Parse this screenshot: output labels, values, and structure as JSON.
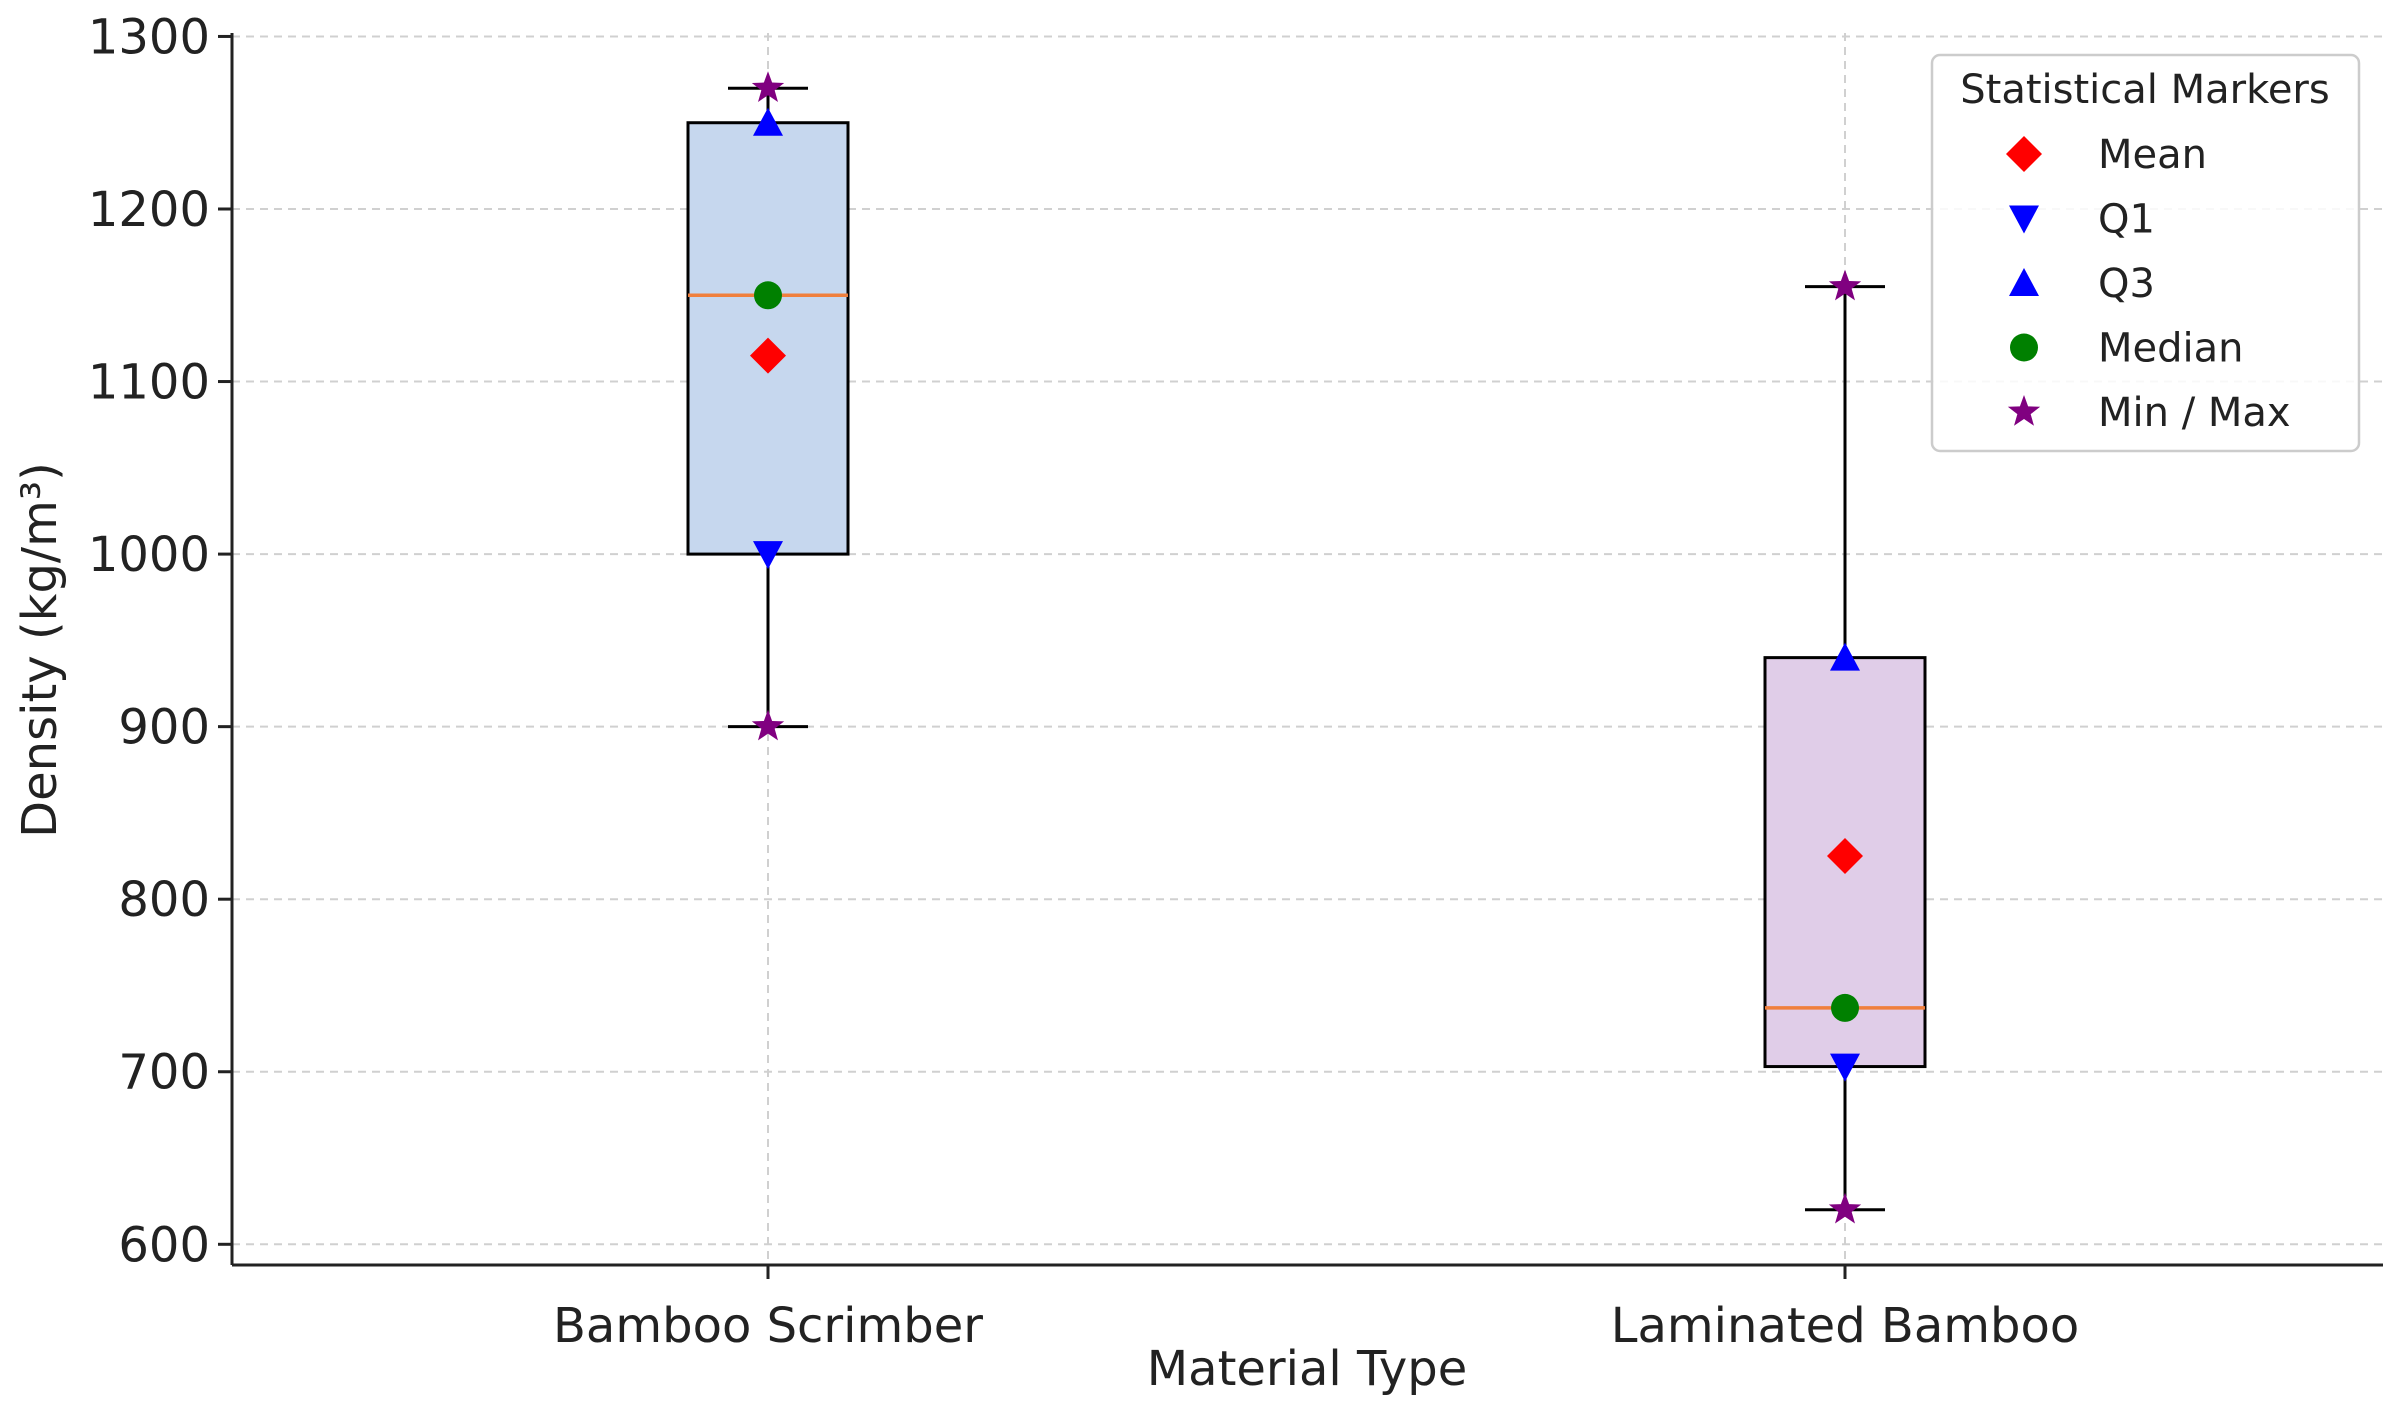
{
  "chart_data": {
    "type": "box",
    "title": "",
    "xlabel": "Material Type",
    "ylabel": "Density (kg/m³)",
    "ylim": [
      588,
      1302
    ],
    "yticks": [
      600,
      700,
      800,
      900,
      1000,
      1100,
      1200,
      1300
    ],
    "grid": true,
    "categories": [
      "Bamboo Scrimber",
      "Laminated Bamboo"
    ],
    "boxes": [
      {
        "name": "Bamboo Scrimber",
        "min": 900,
        "q1": 1000,
        "median": 1150,
        "q3": 1250,
        "max": 1270,
        "mean": 1115,
        "color": "#c6d7ee"
      },
      {
        "name": "Laminated Bamboo",
        "min": 620,
        "q1": 703,
        "median": 737,
        "q3": 940,
        "max": 1155,
        "mean": 825,
        "color": "#e0cde8"
      }
    ],
    "median_line_color": "#f07f3c",
    "legend": {
      "title": "Statistical Markers",
      "position": "top-right",
      "entries": [
        {
          "label": "Mean",
          "marker": "diamond",
          "color": "#ff0000"
        },
        {
          "label": "Q1",
          "marker": "triangle-down",
          "color": "#0000ff"
        },
        {
          "label": "Q3",
          "marker": "triangle-up",
          "color": "#0000ff"
        },
        {
          "label": "Median",
          "marker": "circle",
          "color": "#008000"
        },
        {
          "label": "Min / Max",
          "marker": "star",
          "color": "#800080"
        }
      ]
    }
  }
}
